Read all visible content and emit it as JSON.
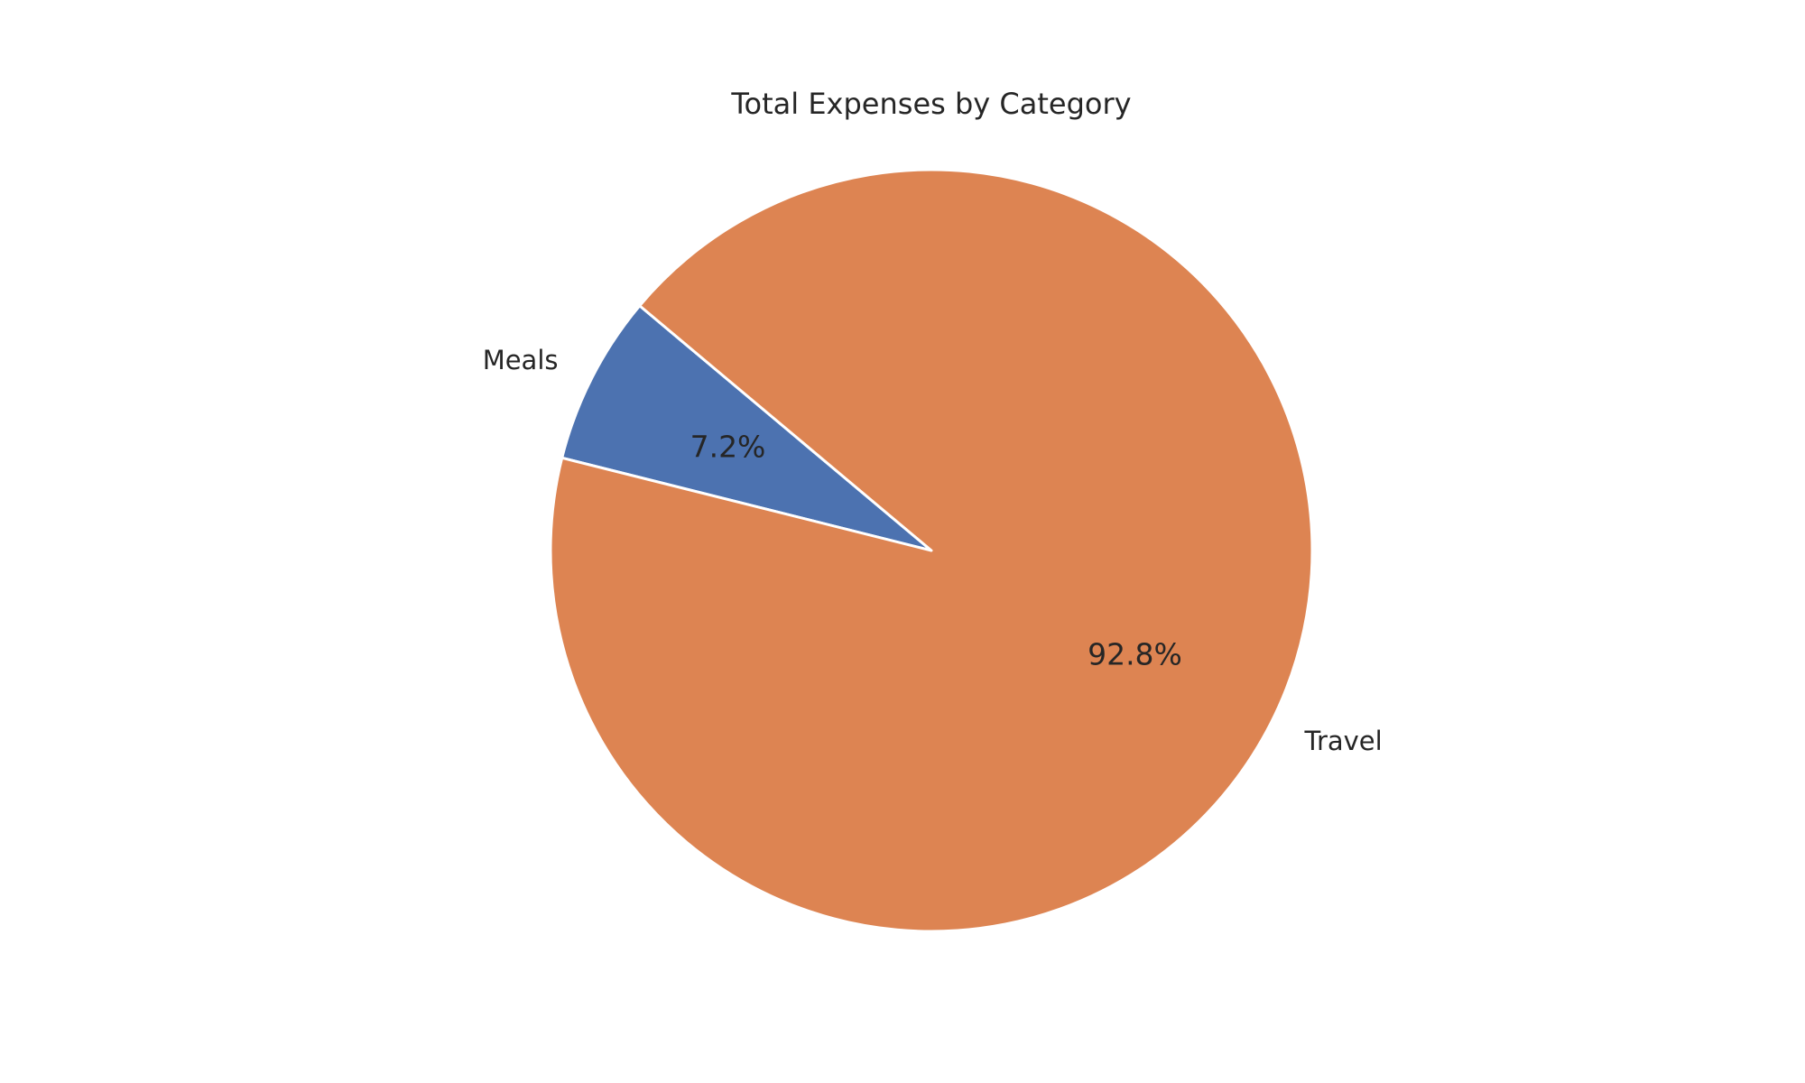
{
  "chart_data": {
    "type": "pie",
    "title": "Total Expenses by Category",
    "slices": [
      {
        "label": "Meals",
        "percent": 7.2,
        "percent_label": "7.2%",
        "color": "#4c72b0"
      },
      {
        "label": "Travel",
        "percent": 92.8,
        "percent_label": "92.8%",
        "color": "#dd8452"
      }
    ],
    "start_angle_deg": 140,
    "direction": "counterclockwise",
    "legend": "none"
  }
}
